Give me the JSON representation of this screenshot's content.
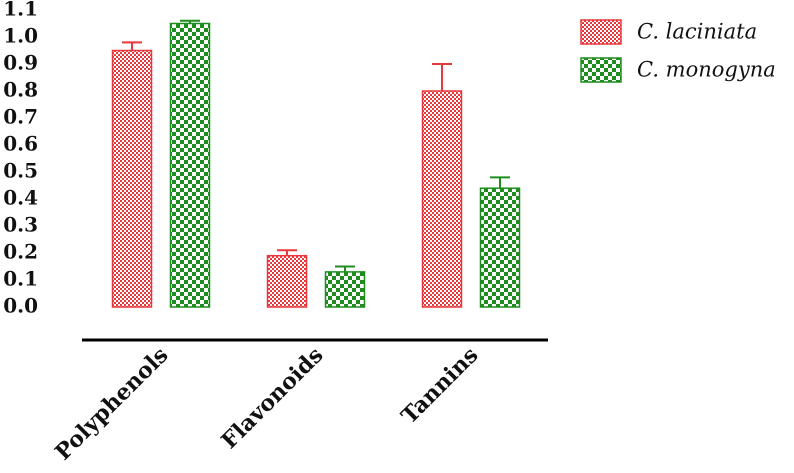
{
  "chart_data": {
    "type": "bar",
    "categories": [
      "Polyphenols",
      "Flavonoids",
      "Tannins"
    ],
    "series": [
      {
        "name": "C. laciniata",
        "color": "#e8383d",
        "values": [
          0.95,
          0.19,
          0.8
        ],
        "errors": [
          0.03,
          0.02,
          0.1
        ]
      },
      {
        "name": "C. monogyna",
        "color": "#1e8c1e",
        "values": [
          1.05,
          0.13,
          0.44
        ],
        "errors": [
          0.01,
          0.02,
          0.04
        ]
      }
    ],
    "ylim": [
      0,
      1.1
    ],
    "yticks": [
      {
        "value": 0,
        "label": "0.0"
      },
      0.1,
      0.2,
      0.3,
      0.4,
      0.5,
      0.6,
      0.7,
      0.8,
      0.9,
      {
        "value": 1,
        "label": "1.0"
      },
      1.1
    ],
    "legend": "upper-right"
  }
}
